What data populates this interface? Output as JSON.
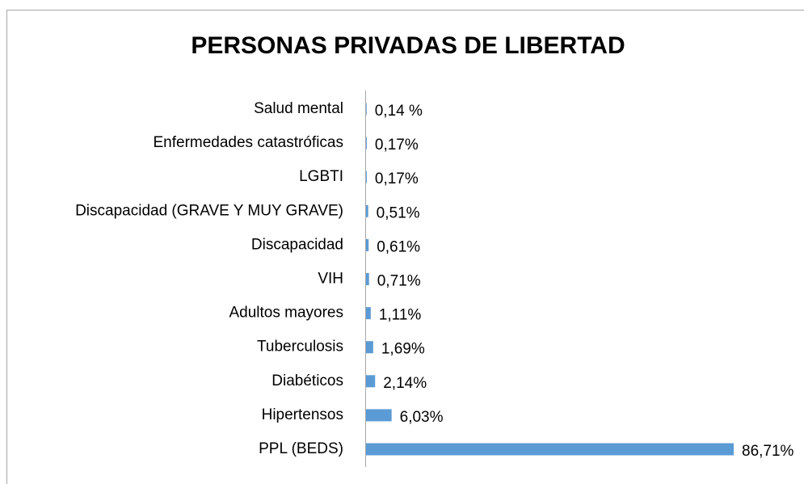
{
  "chart_data": {
    "type": "bar",
    "orientation": "horizontal",
    "title": "PERSONAS PRIVADAS DE LIBERTAD",
    "categories": [
      "Salud mental",
      "Enfermedades catastróficas",
      "LGBTI",
      "Discapacidad (GRAVE Y MUY GRAVE)",
      "Discapacidad",
      "VIH",
      "Adultos mayores",
      "Tuberculosis",
      "Diabéticos",
      "Hipertensos",
      "PPL (BEDS)"
    ],
    "values": [
      0.14,
      0.17,
      0.17,
      0.51,
      0.61,
      0.71,
      1.11,
      1.69,
      2.14,
      6.03,
      86.71
    ],
    "value_labels": [
      "0,14 %",
      "0,17%",
      "0,17%",
      "0,51%",
      "0,61%",
      "0,71%",
      "1,11%",
      "1,69%",
      "2,14%",
      "6,03%",
      "86,71%"
    ],
    "color": "#5b9bd5"
  }
}
